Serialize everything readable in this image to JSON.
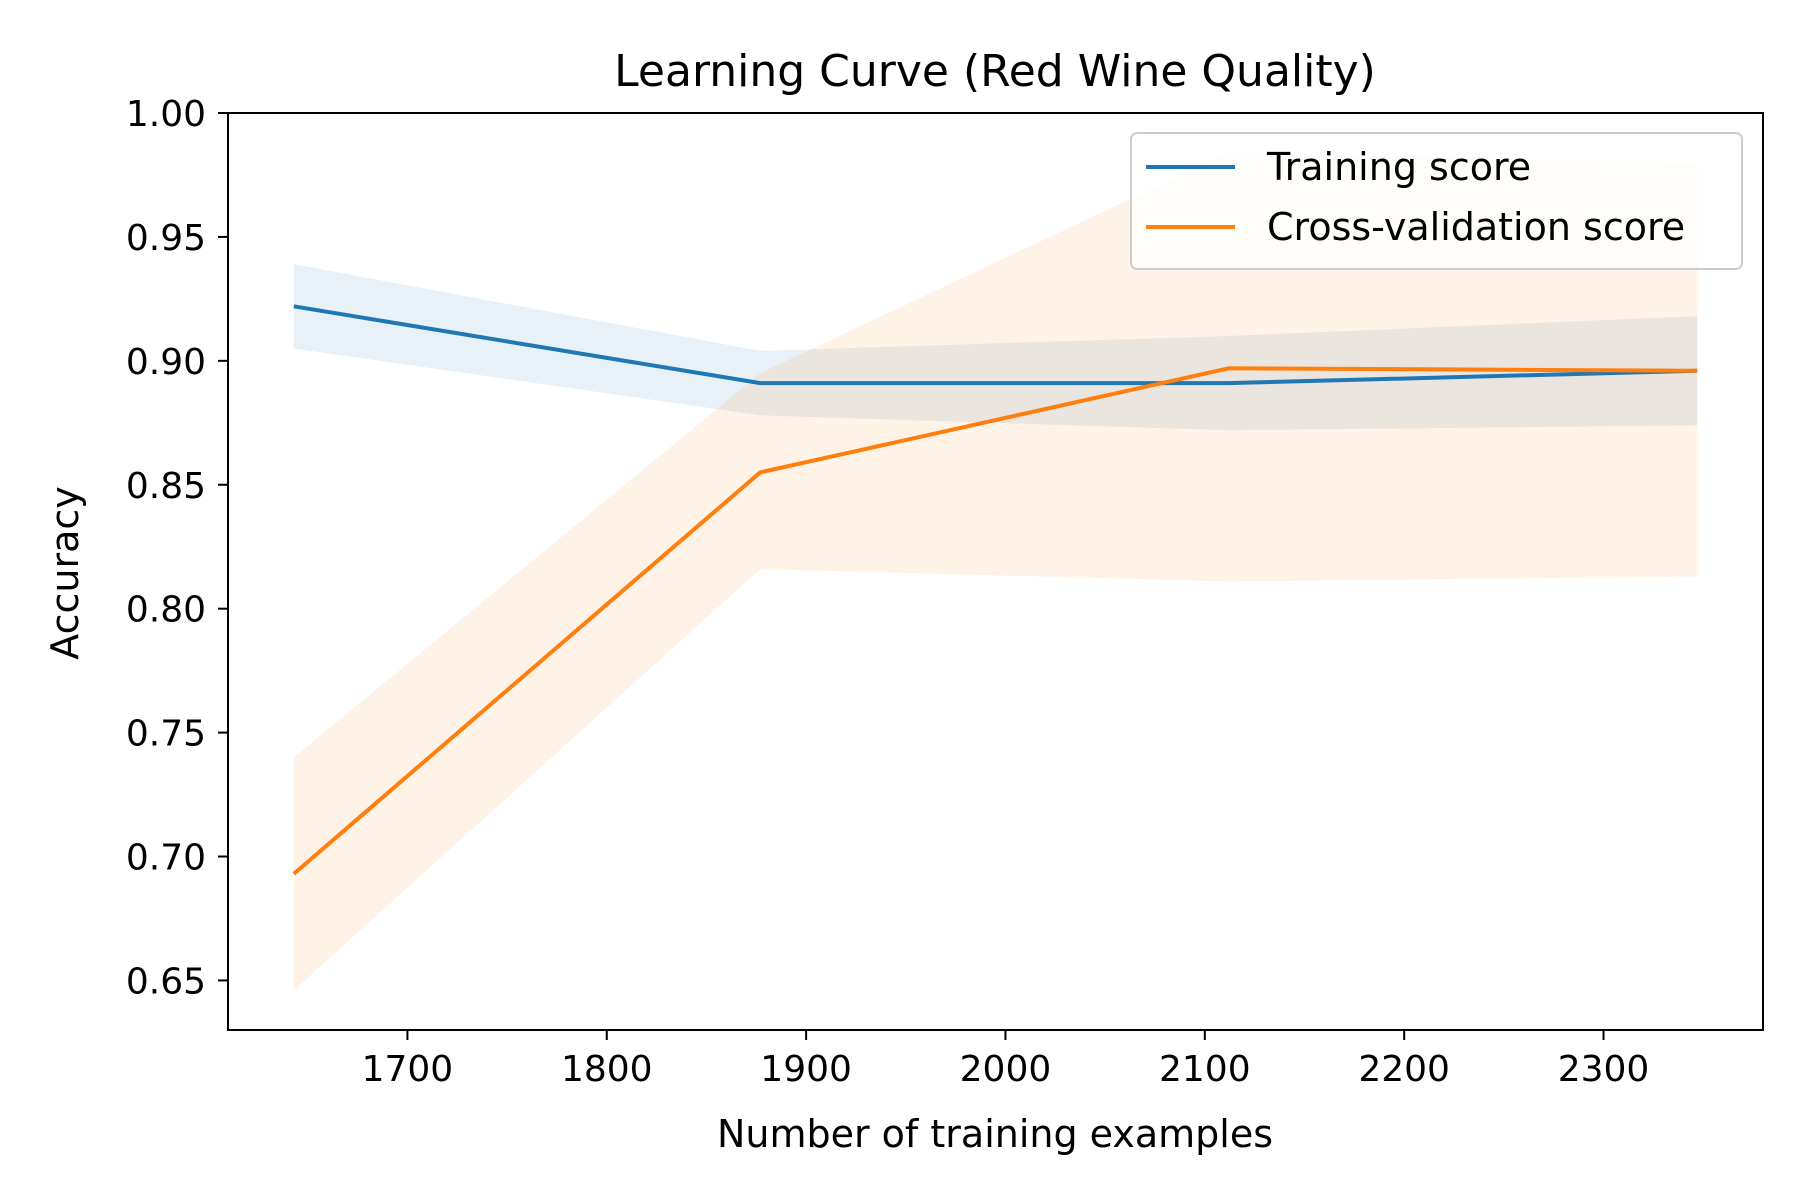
{
  "chart_data": {
    "type": "line",
    "title": "Learning Curve (Red Wine Quality)",
    "xlabel": "Number of training examples",
    "ylabel": "Accuracy",
    "xlim": [
      1610,
      2380
    ],
    "ylim": [
      0.63,
      1.0
    ],
    "xticks": [
      1700,
      1800,
      1900,
      2000,
      2100,
      2200,
      2300
    ],
    "yticks": [
      0.65,
      0.7,
      0.75,
      0.8,
      0.85,
      0.9,
      0.95,
      1.0
    ],
    "xtick_labels": [
      "1700",
      "1800",
      "1900",
      "2000",
      "2100",
      "2200",
      "2300"
    ],
    "ytick_labels": [
      "0.65",
      "0.70",
      "0.75",
      "0.80",
      "0.85",
      "0.90",
      "0.95",
      "1.00"
    ],
    "x": [
      1643,
      1877,
      2112,
      2347
    ],
    "grid": false,
    "legend_position": "upper-right",
    "series": [
      {
        "name": "Training score",
        "color": "#1f77b4",
        "values": [
          0.922,
          0.891,
          0.891,
          0.896
        ],
        "band_upper": [
          0.939,
          0.904,
          0.91,
          0.918
        ],
        "band_lower": [
          0.905,
          0.878,
          0.872,
          0.874
        ]
      },
      {
        "name": "Cross-validation score",
        "color": "#ff7f0e",
        "values": [
          0.693,
          0.855,
          0.897,
          0.896
        ],
        "band_upper": [
          0.74,
          0.895,
          0.984,
          0.98
        ],
        "band_lower": [
          0.646,
          0.816,
          0.811,
          0.813
        ]
      }
    ]
  }
}
